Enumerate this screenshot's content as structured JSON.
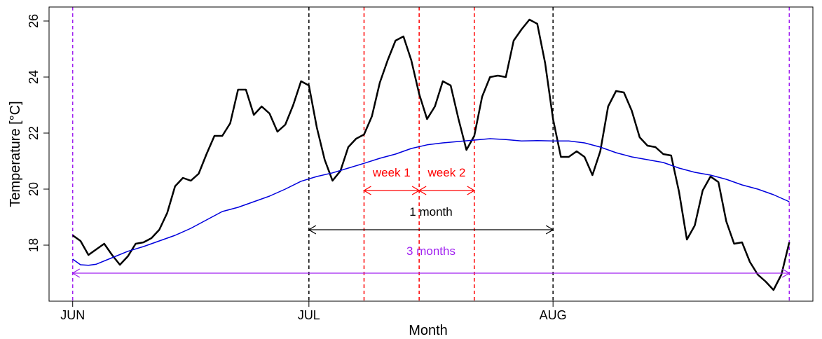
{
  "chart_data": {
    "type": "line",
    "title": "",
    "xlabel": "Month",
    "ylabel": "Temperature [°C]",
    "xlim": [
      "2013-05-29",
      "2013-09-03"
    ],
    "ylim": [
      16.0,
      26.5
    ],
    "x_ticks": [
      {
        "date": "2013-06-01",
        "label": "JUN"
      },
      {
        "date": "2013-07-01",
        "label": "JUL"
      },
      {
        "date": "2013-08-01",
        "label": "AUG"
      }
    ],
    "y_ticks": [
      18,
      20,
      22,
      24,
      26
    ],
    "grid": false,
    "legend": "none",
    "series": [
      {
        "color": "#000000",
        "x": [
          "2013-06-01",
          "2013-06-02",
          "2013-06-03",
          "2013-06-04",
          "2013-06-05",
          "2013-06-06",
          "2013-06-07",
          "2013-06-08",
          "2013-06-09",
          "2013-06-10",
          "2013-06-11",
          "2013-06-12",
          "2013-06-13",
          "2013-06-14",
          "2013-06-15",
          "2013-06-16",
          "2013-06-17",
          "2013-06-18",
          "2013-06-19",
          "2013-06-20",
          "2013-06-21",
          "2013-06-22",
          "2013-06-23",
          "2013-06-24",
          "2013-06-25",
          "2013-06-26",
          "2013-06-27",
          "2013-06-28",
          "2013-06-29",
          "2013-06-30",
          "2013-07-01",
          "2013-07-02",
          "2013-07-03",
          "2013-07-04",
          "2013-07-05",
          "2013-07-06",
          "2013-07-07",
          "2013-07-08",
          "2013-07-09",
          "2013-07-10",
          "2013-07-11",
          "2013-07-12",
          "2013-07-13",
          "2013-07-14",
          "2013-07-15",
          "2013-07-16",
          "2013-07-17",
          "2013-07-18",
          "2013-07-19",
          "2013-07-20",
          "2013-07-21",
          "2013-07-22",
          "2013-07-23",
          "2013-07-24",
          "2013-07-25",
          "2013-07-26",
          "2013-07-27",
          "2013-07-28",
          "2013-07-29",
          "2013-07-30",
          "2013-07-31",
          "2013-08-01",
          "2013-08-02",
          "2013-08-03",
          "2013-08-04",
          "2013-08-05",
          "2013-08-06",
          "2013-08-07",
          "2013-08-08",
          "2013-08-09",
          "2013-08-10",
          "2013-08-11",
          "2013-08-12",
          "2013-08-13",
          "2013-08-14",
          "2013-08-15",
          "2013-08-16",
          "2013-08-17",
          "2013-08-18",
          "2013-08-19",
          "2013-08-20",
          "2013-08-21",
          "2013-08-22",
          "2013-08-23",
          "2013-08-24",
          "2013-08-25",
          "2013-08-26",
          "2013-08-27",
          "2013-08-28",
          "2013-08-29",
          "2013-08-30",
          "2013-08-31"
        ],
        "values": [
          18.35,
          18.15,
          17.65,
          17.85,
          18.05,
          17.65,
          17.3,
          17.6,
          18.05,
          18.1,
          18.25,
          18.55,
          19.15,
          20.1,
          20.4,
          20.3,
          20.55,
          21.25,
          21.9,
          21.9,
          22.35,
          23.55,
          23.55,
          22.65,
          22.95,
          22.7,
          22.05,
          22.3,
          23.0,
          23.85,
          23.7,
          22.2,
          21.05,
          20.3,
          20.65,
          21.5,
          21.8,
          21.95,
          22.6,
          23.8,
          24.6,
          25.3,
          25.45,
          24.6,
          23.4,
          22.5,
          22.95,
          23.85,
          23.7,
          22.5,
          21.4,
          21.9,
          23.3,
          24.0,
          24.05,
          24.0,
          25.3,
          25.7,
          26.05,
          25.9,
          24.5,
          22.5,
          21.15,
          21.15,
          21.35,
          21.15,
          20.5,
          21.35,
          22.95,
          23.5,
          23.45,
          22.8,
          21.85,
          21.55,
          21.5,
          21.25,
          21.2,
          19.9,
          18.2,
          18.7,
          19.95,
          20.45,
          20.25,
          18.85,
          18.05,
          18.1,
          17.4,
          16.95,
          16.7,
          16.4,
          16.95,
          18.1
        ]
      },
      {
        "color": "#0000dd",
        "x": [
          "2013-06-01",
          "2013-06-02",
          "2013-06-03",
          "2013-06-04",
          "2013-06-06",
          "2013-06-08",
          "2013-06-10",
          "2013-06-12",
          "2013-06-14",
          "2013-06-16",
          "2013-06-18",
          "2013-06-20",
          "2013-06-22",
          "2013-06-24",
          "2013-06-26",
          "2013-06-28",
          "2013-06-30",
          "2013-07-02",
          "2013-07-04",
          "2013-07-06",
          "2013-07-08",
          "2013-07-10",
          "2013-07-12",
          "2013-07-14",
          "2013-07-16",
          "2013-07-18",
          "2013-07-20",
          "2013-07-22",
          "2013-07-24",
          "2013-07-26",
          "2013-07-28",
          "2013-07-30",
          "2013-08-01",
          "2013-08-03",
          "2013-08-05",
          "2013-08-07",
          "2013-08-09",
          "2013-08-11",
          "2013-08-13",
          "2013-08-15",
          "2013-08-17",
          "2013-08-19",
          "2013-08-21",
          "2013-08-23",
          "2013-08-25",
          "2013-08-27",
          "2013-08-29",
          "2013-08-31"
        ],
        "values": [
          17.5,
          17.3,
          17.28,
          17.32,
          17.55,
          17.78,
          17.95,
          18.15,
          18.35,
          18.6,
          18.9,
          19.2,
          19.35,
          19.55,
          19.75,
          20.0,
          20.28,
          20.45,
          20.58,
          20.75,
          20.92,
          21.1,
          21.25,
          21.45,
          21.58,
          21.65,
          21.7,
          21.75,
          21.8,
          21.77,
          21.72,
          21.73,
          21.72,
          21.72,
          21.65,
          21.5,
          21.3,
          21.15,
          21.05,
          20.95,
          20.75,
          20.6,
          20.5,
          20.35,
          20.15,
          20.0,
          19.8,
          19.55
        ]
      }
    ],
    "reference_lines": [
      {
        "date": "2013-06-01",
        "color": "#a020f0"
      },
      {
        "date": "2013-08-31",
        "color": "#a020f0"
      },
      {
        "date": "2013-07-01",
        "color": "#000000"
      },
      {
        "date": "2013-08-01",
        "color": "#000000"
      },
      {
        "date": "2013-07-08",
        "color": "#ff0000"
      },
      {
        "date": "2013-07-15",
        "color": "#ff0000"
      },
      {
        "date": "2013-07-22",
        "color": "#ff0000"
      }
    ],
    "annotations": [
      {
        "label": "3 months",
        "from": "2013-06-01",
        "to": "2013-08-31",
        "arrow_y": 17.0,
        "label_y": 17.8,
        "color": "#a020f0"
      },
      {
        "label": "1 month",
        "from": "2013-07-01",
        "to": "2013-08-01",
        "arrow_y": 18.55,
        "label_y": 19.2,
        "color": "#000000"
      },
      {
        "label": "week 1",
        "from": "2013-07-08",
        "to": "2013-07-15",
        "arrow_y": 19.95,
        "label_y": 20.6,
        "color": "#ff0000"
      },
      {
        "label": "week 2",
        "from": "2013-07-15",
        "to": "2013-07-22",
        "arrow_y": 19.95,
        "label_y": 20.6,
        "color": "#ff0000"
      }
    ]
  }
}
